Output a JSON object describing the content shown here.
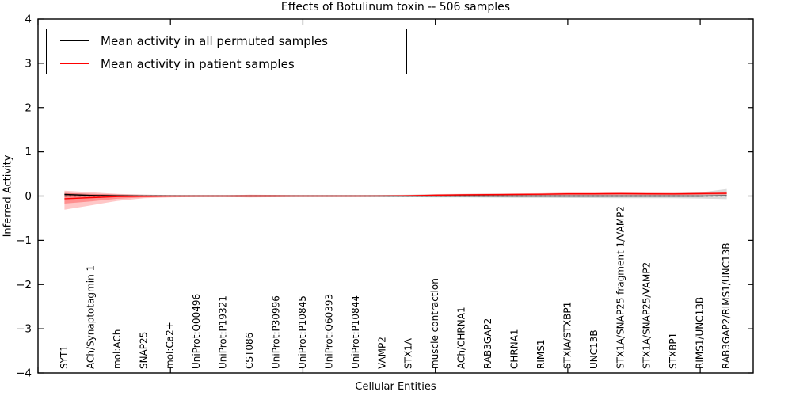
{
  "title": "Effects of Botulinum toxin -- 506 samples",
  "axes": {
    "xlabel": "Cellular Entities",
    "ylabel": "Inferred Activity",
    "ytick_labels": [
      "4",
      "3",
      "2",
      "1",
      "0",
      "−1",
      "−2",
      "−3",
      "−4"
    ]
  },
  "legend": {
    "items": [
      {
        "label": "Mean activity in all permuted samples",
        "color": "#000000"
      },
      {
        "label": "Mean activity in patient samples",
        "color": "#ff0000"
      }
    ]
  },
  "chart_data": {
    "type": "line",
    "title": "Effects of Botulinum toxin -- 506 samples",
    "xlabel": "Cellular Entities",
    "ylabel": "Inferred Activity",
    "xlim": [
      0,
      27
    ],
    "ylim": [
      -4,
      4
    ],
    "yticks": [
      4,
      3,
      2,
      1,
      0,
      -1,
      -2,
      -3,
      -4
    ],
    "xticks_major": [
      0,
      5,
      10,
      15,
      20,
      25
    ],
    "grid": false,
    "legend_position": "upper left",
    "zero_line": {
      "style": "dashed",
      "color": "#000000",
      "y": 0
    },
    "categories": [
      "SYT1",
      "ACh/Synaptotagmin 1",
      "mol:ACh",
      "SNAP25",
      "mol:Ca2+",
      "UniProt:Q00496",
      "UniProt:P19321",
      "CST086",
      "UniProt:P30996",
      "UniProt:P10845",
      "UniProt:Q60393",
      "UniProt:P10844",
      "VAMP2",
      "STX1A",
      "muscle contraction",
      "ACh/CHRNA1",
      "RAB3GAP2",
      "CHRNA1",
      "RIMS1",
      "STXIA/STXBP1",
      "UNC13B",
      "STX1A/SNAP25 fragment 1/VAMP2",
      "STX1A/SNAP25/VAMP2",
      "STXBP1",
      "RIMS1/UNC13B",
      "RAB3GAP2/RIMS1/UNC13B"
    ],
    "series": [
      {
        "name": "Mean activity in all permuted samples",
        "color": "#000000",
        "values": [
          0.035,
          0.015,
          0.005,
          0.002,
          0.001,
          0.0,
          0.0,
          0.0,
          0.0,
          0.0,
          0.0,
          0.0,
          0.0,
          0.0,
          0.0,
          0.0,
          0.0,
          0.0,
          0.0,
          0.0,
          0.0,
          0.0,
          0.0,
          0.0,
          0.0,
          0.005
        ]
      },
      {
        "name": "Mean activity in patient samples",
        "color": "#ff0000",
        "values": [
          -0.06,
          -0.035,
          -0.012,
          -0.005,
          -0.002,
          0.0,
          0.0,
          0.0,
          0.0,
          0.0,
          0.0,
          0.0,
          0.002,
          0.008,
          0.02,
          0.028,
          0.032,
          0.038,
          0.042,
          0.05,
          0.05,
          0.055,
          0.05,
          0.048,
          0.055,
          0.06
        ]
      }
    ],
    "bands": [
      {
        "name": "permuted-samples-interval",
        "color": "#999999",
        "opacity": 0.35,
        "upper": [
          0.07,
          0.05,
          0.04,
          0.03,
          0.025,
          0.025,
          0.025,
          0.025,
          0.025,
          0.025,
          0.025,
          0.025,
          0.025,
          0.03,
          0.04,
          0.045,
          0.05,
          0.05,
          0.055,
          0.06,
          0.06,
          0.07,
          0.065,
          0.065,
          0.08,
          0.16
        ],
        "lower": [
          -0.02,
          -0.02,
          -0.015,
          -0.02,
          -0.02,
          -0.02,
          -0.02,
          -0.02,
          -0.02,
          -0.02,
          -0.02,
          -0.02,
          -0.02,
          -0.025,
          -0.03,
          -0.03,
          -0.035,
          -0.04,
          -0.04,
          -0.045,
          -0.045,
          -0.05,
          -0.05,
          -0.05,
          -0.055,
          -0.07
        ]
      },
      {
        "name": "patient-samples-interval-outer",
        "color": "#ff0000",
        "opacity": 0.22,
        "upper": [
          0.12,
          0.085,
          0.05,
          0.03,
          0.02,
          0.015,
          0.015,
          0.03,
          0.025,
          0.015,
          0.015,
          0.015,
          0.02,
          0.025,
          0.045,
          0.05,
          0.055,
          0.06,
          0.065,
          0.08,
          0.08,
          0.09,
          0.08,
          0.075,
          0.085,
          0.1
        ],
        "lower": [
          -0.31,
          -0.21,
          -0.11,
          -0.05,
          -0.03,
          -0.02,
          -0.02,
          -0.03,
          -0.025,
          -0.015,
          -0.015,
          -0.015,
          -0.01,
          -0.005,
          -0.005,
          0.0,
          0.005,
          0.01,
          0.015,
          0.02,
          0.02,
          0.02,
          0.02,
          0.02,
          0.025,
          0.03
        ],
        "legend_items": null
      },
      {
        "name": "patient-samples-interval-inner",
        "color": "#ff0000",
        "opacity": 0.28,
        "upper": [
          0.07,
          0.05,
          0.03,
          0.015,
          0.01,
          0.008,
          0.008,
          0.015,
          0.012,
          0.008,
          0.008,
          0.008,
          0.01,
          0.015,
          0.03,
          0.038,
          0.042,
          0.048,
          0.052,
          0.062,
          0.062,
          0.068,
          0.062,
          0.06,
          0.066,
          0.075
        ],
        "lower": [
          -0.17,
          -0.12,
          -0.06,
          -0.03,
          -0.015,
          -0.01,
          -0.01,
          -0.015,
          -0.012,
          -0.008,
          -0.008,
          -0.008,
          -0.005,
          0.0,
          0.005,
          0.01,
          0.015,
          0.02,
          0.025,
          0.03,
          0.03,
          0.035,
          0.03,
          0.03,
          0.035,
          0.04
        ]
      }
    ]
  }
}
